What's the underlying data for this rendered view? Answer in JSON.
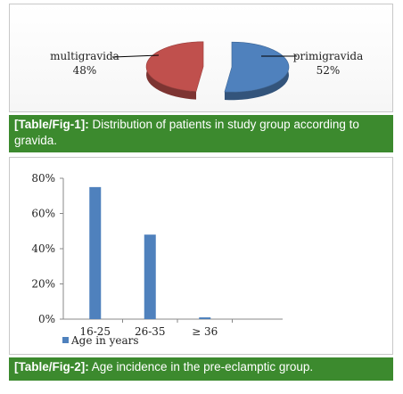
{
  "figures": [
    {
      "caption_tag": "[Table/Fig-1]:",
      "caption_text": " Distribution of patients in study group according to gravida."
    },
    {
      "caption_tag": "[Table/Fig-2]:",
      "caption_text": " Age incidence in the pre-eclamptic group."
    }
  ],
  "chart_data": [
    {
      "type": "pie",
      "title": "",
      "slices": [
        {
          "label": "multigravida",
          "value_label": "48%",
          "value": 48,
          "color": "#c0504d"
        },
        {
          "label": "primigravida",
          "value_label": "52%",
          "value": 52,
          "color": "#4f81bd"
        }
      ]
    },
    {
      "type": "bar",
      "title": "",
      "categories": [
        "16-25",
        "26-35",
        "≥ 36"
      ],
      "series": [
        {
          "name": "Age in years",
          "values": [
            75,
            48,
            1
          ],
          "color": "#4f81bd"
        }
      ],
      "ylim": [
        0,
        80
      ],
      "yticks": [
        "0%",
        "20%",
        "40%",
        "60%",
        "80%"
      ],
      "legend": "bottom-left",
      "grid": false
    }
  ]
}
